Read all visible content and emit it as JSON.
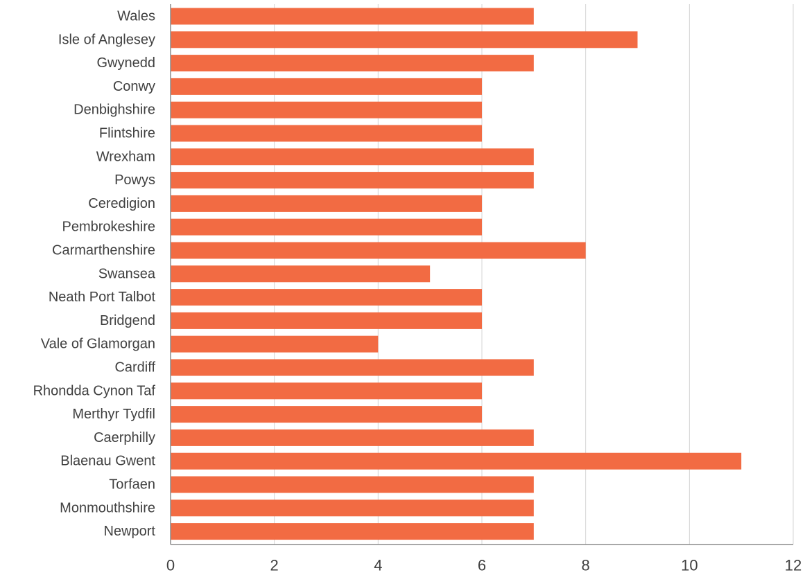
{
  "chart_data": {
    "type": "bar",
    "orientation": "horizontal",
    "title": "",
    "xlabel": "",
    "ylabel": "",
    "categories": [
      "Wales",
      "Isle of Anglesey",
      "Gwynedd",
      "Conwy",
      "Denbighshire",
      "Flintshire",
      "Wrexham",
      "Powys",
      "Ceredigion",
      "Pembrokeshire",
      "Carmarthenshire",
      "Swansea",
      "Neath Port Talbot",
      "Bridgend",
      "Vale of Glamorgan",
      "Cardiff",
      "Rhondda Cynon Taf",
      "Merthyr Tydfil",
      "Caerphilly",
      "Blaenau Gwent",
      "Torfaen",
      "Monmouthshire",
      "Newport"
    ],
    "values": [
      7,
      9,
      7,
      6,
      6,
      6,
      7,
      7,
      6,
      6,
      8,
      5,
      6,
      6,
      4,
      7,
      6,
      6,
      7,
      11,
      7,
      7,
      7
    ],
    "xlim": [
      0,
      12
    ],
    "xticks": [
      0,
      2,
      4,
      6,
      8,
      10,
      12
    ],
    "xtick_labels": [
      "0",
      "2",
      "4",
      "6",
      "8",
      "10",
      "12"
    ],
    "grid": "vertical",
    "legend": "none",
    "colors": {
      "bar": "#F26B43",
      "grid": "#d4d4d4",
      "axis": "#8c8c8c",
      "text": "#404040"
    }
  }
}
